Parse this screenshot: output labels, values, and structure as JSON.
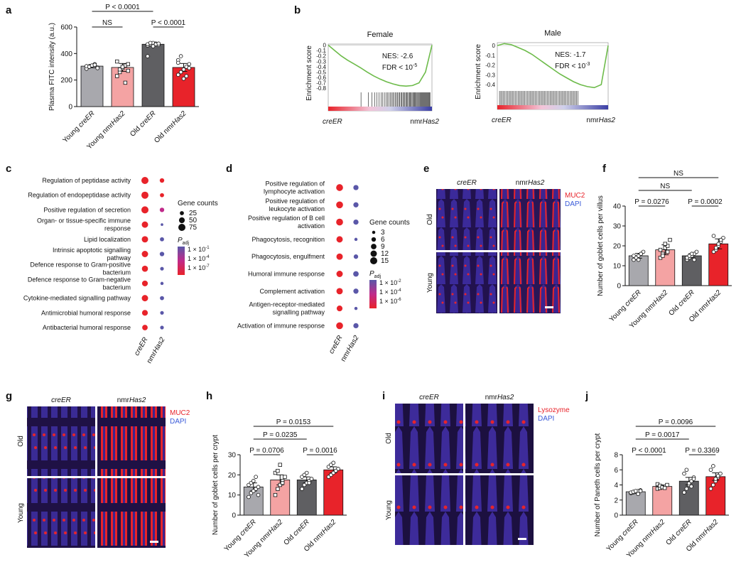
{
  "colors": {
    "young_creER": "#a8a8ad",
    "young_nmrHas2": "#f4a3a3",
    "old_creER": "#5f5f62",
    "old_nmrHas2": "#e8232a",
    "gsea_line": "#6dbb4a",
    "dot_low": "#e8232a",
    "dot_high": "#5a57a8"
  },
  "panel_letters": [
    "a",
    "b",
    "c",
    "d",
    "e",
    "f",
    "g",
    "h",
    "i",
    "j"
  ],
  "chart_data": [
    {
      "panel": "a",
      "type": "bar",
      "ylabel": "Plasma FITC intensity (a.u.)",
      "ylim": [
        0,
        600
      ],
      "yticks": [
        "0",
        "200",
        "400",
        "600"
      ],
      "categories": [
        "Young creER",
        "Young nmrHas2",
        "Old creER",
        "Old nmrHas2"
      ],
      "values": [
        305,
        295,
        470,
        295
      ],
      "errors": [
        12,
        30,
        10,
        30
      ],
      "points": [
        [
          285,
          300,
          310,
          320,
          295,
          305,
          300,
          310,
          315,
          290
        ],
        [
          230,
          260,
          290,
          310,
          320,
          340,
          280,
          300,
          180,
          270
        ],
        [
          460,
          470,
          480,
          475,
          465,
          470,
          480,
          455,
          470,
          475,
          380
        ],
        [
          240,
          260,
          280,
          300,
          320,
          350,
          380,
          210,
          230,
          290,
          330
        ]
      ],
      "comparisons": [
        {
          "label": "NS",
          "from": 0,
          "to": 1
        },
        {
          "label": "P < 0.0001",
          "from": 0,
          "to": 2
        },
        {
          "label": "NS",
          "from": 0,
          "to": 3
        },
        {
          "label": "P < 0.0001",
          "from": 2,
          "to": 3
        }
      ]
    },
    {
      "panel": "b",
      "type": "line",
      "plots": [
        {
          "title": "Female",
          "ylabel": "Enrichment score",
          "yticks": [
            "0",
            "-0.1",
            "-0.2",
            "-0.3",
            "-0.4",
            "-0.5",
            "-0.6",
            "-0.7",
            "-0.8"
          ],
          "nes": "NES: -2.6",
          "fdr": "FDR < 10",
          "fdr_exp": "-5",
          "x_left": "creER",
          "x_right": "nmrHas2",
          "y": [
            0,
            -0.1,
            -0.2,
            -0.28,
            -0.35,
            -0.42,
            -0.5,
            -0.57,
            -0.63,
            -0.68,
            -0.72,
            -0.75,
            -0.76,
            -0.75,
            -0.7,
            -0.5,
            0
          ],
          "ylim": [
            -0.85,
            0.02
          ]
        },
        {
          "title": "Male",
          "ylabel": "Enrichment score",
          "yticks": [
            "0",
            "-0.1",
            "-0.2",
            "-0.3",
            "-0.4"
          ],
          "nes": "NES: -1.7",
          "fdr": "FDR < 10",
          "fdr_exp": "-3",
          "x_left": "creER",
          "x_right": "nmrHas2",
          "y": [
            0,
            0.02,
            0.01,
            -0.02,
            -0.05,
            -0.09,
            -0.14,
            -0.19,
            -0.24,
            -0.29,
            -0.33,
            -0.37,
            -0.4,
            -0.42,
            -0.43,
            -0.4,
            0
          ],
          "ylim": [
            -0.45,
            0.03
          ]
        }
      ]
    },
    {
      "panel": "c",
      "type": "scatter",
      "xcats": [
        "creER",
        "nmrHas2"
      ],
      "terms": [
        "Regulation of peptidase activity",
        "Regulation of endopeptidase activity",
        "Positive regulation of secretion",
        "Organ- or tissue-specific immune response",
        "Lipid localization",
        "Intrinsic apoptotic signalling pathway",
        "Defence response to Gram-positive bacterium",
        "Defence response to Gram-negative bacterium",
        "Cytokine-mediated signalling pathway",
        "Antimicrobial humoral response",
        "Antibacterial humoral response"
      ],
      "sizes": [
        [
          75,
          30
        ],
        [
          75,
          25
        ],
        [
          75,
          30
        ],
        [
          60,
          10
        ],
        [
          60,
          25
        ],
        [
          60,
          30
        ],
        [
          55,
          20
        ],
        [
          50,
          15
        ],
        [
          60,
          25
        ],
        [
          50,
          20
        ],
        [
          45,
          20
        ]
      ],
      "padj_level": [
        [
          0.0,
          0.3
        ],
        [
          0.0,
          0.3
        ],
        [
          0.05,
          0.6
        ],
        [
          0.1,
          0.9
        ],
        [
          0.1,
          0.7
        ],
        [
          0.15,
          0.7
        ],
        [
          0.2,
          0.7
        ],
        [
          0.25,
          0.9
        ],
        [
          0.25,
          0.9
        ],
        [
          0.3,
          0.9
        ],
        [
          0.3,
          0.9
        ]
      ],
      "legend_title": "Gene counts",
      "legend_sizes": [
        "25",
        "50",
        "75"
      ],
      "padj_title": "P",
      "padj_sub": "adj",
      "padj_ticks": [
        "1 × 10",
        "1 × 10",
        "1 × 10"
      ],
      "padj_exps": [
        "-1",
        "-4",
        "-7"
      ]
    },
    {
      "panel": "d",
      "type": "scatter",
      "xcats": [
        "creER",
        "nmrHas2"
      ],
      "terms": [
        "Positive regulation of lymphocyte activation",
        "Positive regulation of leukocyte activation",
        "Positive regulation of B cell activation",
        "Phagocytosis, recognition",
        "Phagocytosis, engulfment",
        "Humoral immune response",
        "Complement activation",
        "Antigen-receptor-mediated signalling pathway",
        "Activation of immune response"
      ],
      "sizes": [
        [
          14,
          8
        ],
        [
          14,
          8
        ],
        [
          14,
          8
        ],
        [
          12,
          3
        ],
        [
          12,
          6
        ],
        [
          12,
          9
        ],
        [
          12,
          8
        ],
        [
          10,
          3
        ],
        [
          14,
          8
        ]
      ],
      "padj_level": [
        [
          0.0,
          0.8
        ],
        [
          0.0,
          0.8
        ],
        [
          0.0,
          0.8
        ],
        [
          0.05,
          0.85
        ],
        [
          0.05,
          0.85
        ],
        [
          0.05,
          0.9
        ],
        [
          0.05,
          0.9
        ],
        [
          0.1,
          0.85
        ],
        [
          0.0,
          0.85
        ]
      ],
      "legend_title": "Gene counts",
      "legend_sizes": [
        "3",
        "6",
        "9",
        "12",
        "15"
      ],
      "padj_title": "P",
      "padj_sub": "adj",
      "padj_ticks": [
        "1 × 10",
        "1 × 10",
        "1 × 10"
      ],
      "padj_exps": [
        "-2",
        "-4",
        "-6"
      ]
    },
    {
      "panel": "f",
      "type": "bar",
      "ylabel": "Number of goblet cells per villus",
      "ylim": [
        0,
        40
      ],
      "yticks": [
        "0",
        "10",
        "20",
        "30",
        "40"
      ],
      "categories": [
        "Young creER",
        "Young nmrHas2",
        "Old creER",
        "Old nmrHas2"
      ],
      "values": [
        15,
        18,
        15,
        21
      ],
      "errors": [
        1.2,
        2.5,
        1.0,
        2.5
      ],
      "points": [
        [
          13,
          14,
          15,
          16,
          17,
          15,
          14,
          13,
          16
        ],
        [
          14,
          16,
          19,
          20,
          23,
          18,
          15,
          21,
          17
        ],
        [
          13,
          14,
          15,
          16,
          17,
          14,
          15,
          16,
          13
        ],
        [
          17,
          18,
          20,
          22,
          24,
          25,
          19,
          21,
          23
        ]
      ],
      "comparisons": [
        {
          "label": "P = 0.0276",
          "from": 0,
          "to": 1
        },
        {
          "label": "NS",
          "from": 0,
          "to": 2
        },
        {
          "label": "NS",
          "from": 0,
          "to": 3
        },
        {
          "label": "P = 0.0002",
          "from": 2,
          "to": 3
        }
      ]
    },
    {
      "panel": "h",
      "type": "bar",
      "ylabel": "Number of goblet cells per crypt",
      "ylim": [
        0,
        30
      ],
      "yticks": [
        "0",
        "10",
        "20",
        "30"
      ],
      "categories": [
        "Young creER",
        "Young nmrHas2",
        "Old creER",
        "Old nmrHas2"
      ],
      "values": [
        14,
        17.5,
        17.5,
        22.5
      ],
      "errors": [
        2.0,
        2.5,
        1.5,
        1.5
      ],
      "points": [
        [
          9,
          11,
          12,
          13,
          14,
          15,
          16,
          17,
          19,
          10
        ],
        [
          10,
          13,
          15,
          17,
          19,
          21,
          22,
          25,
          16
        ],
        [
          13,
          15,
          16,
          17,
          18,
          19,
          20,
          21,
          16,
          18
        ],
        [
          19,
          20,
          21,
          22,
          23,
          24,
          25,
          26,
          22
        ]
      ],
      "comparisons": [
        {
          "label": "P = 0.0706",
          "from": 0,
          "to": 1
        },
        {
          "label": "P = 0.0235",
          "from": 0,
          "to": 2
        },
        {
          "label": "P = 0.0153",
          "from": 0,
          "to": 3
        },
        {
          "label": "P = 0.0016",
          "from": 2,
          "to": 3
        }
      ]
    },
    {
      "panel": "j",
      "type": "bar",
      "ylabel": "Number of Paneth cells per crypt",
      "ylim": [
        0,
        8
      ],
      "yticks": [
        "0",
        "2",
        "4",
        "6",
        "8"
      ],
      "categories": [
        "Young creER",
        "Young nmrHas2",
        "Old creER",
        "Old nmrHas2"
      ],
      "values": [
        3.1,
        3.8,
        4.5,
        5.1
      ],
      "errors": [
        0.15,
        0.2,
        0.5,
        0.5
      ],
      "points": [
        [
          2.9,
          3.0,
          3.1,
          3.2,
          3.3,
          3.0,
          3.1,
          3.2,
          2.8,
          3.2
        ],
        [
          3.5,
          3.6,
          3.7,
          3.8,
          4.0,
          4.1,
          3.9,
          3.7,
          3.6
        ],
        [
          3.0,
          3.5,
          4.0,
          4.5,
          5.0,
          5.5,
          6.0,
          4.2,
          3.8,
          4.8
        ],
        [
          3.5,
          4.0,
          4.5,
          5.0,
          5.5,
          6.0,
          6.5,
          4.8,
          5.2
        ]
      ],
      "comparisons": [
        {
          "label": "P < 0.0001",
          "from": 0,
          "to": 1
        },
        {
          "label": "P = 0.0017",
          "from": 0,
          "to": 2
        },
        {
          "label": "P = 0.0096",
          "from": 0,
          "to": 3
        },
        {
          "label": "P = 0.3369",
          "from": 2,
          "to": 3
        }
      ]
    }
  ],
  "micro": [
    {
      "panel": "e",
      "cols": [
        "creER",
        "nmrHas2"
      ],
      "rows": [
        "Old",
        "Young"
      ],
      "legend": [
        {
          "label": "MUC2",
          "color": "#e8232a"
        },
        {
          "label": "DAPI",
          "color": "#3b5bd9"
        }
      ]
    },
    {
      "panel": "g",
      "cols": [
        "creER",
        "nmrHas2"
      ],
      "rows": [
        "Old",
        "Young"
      ],
      "legend": [
        {
          "label": "MUC2",
          "color": "#e8232a"
        },
        {
          "label": "DAPI",
          "color": "#3b5bd9"
        }
      ]
    },
    {
      "panel": "i",
      "cols": [
        "creER",
        "nmrHas2"
      ],
      "rows": [
        "Old",
        "Young"
      ],
      "legend": [
        {
          "label": "Lysozyme",
          "color": "#e8232a"
        },
        {
          "label": "DAPI",
          "color": "#3b5bd9"
        }
      ]
    }
  ]
}
